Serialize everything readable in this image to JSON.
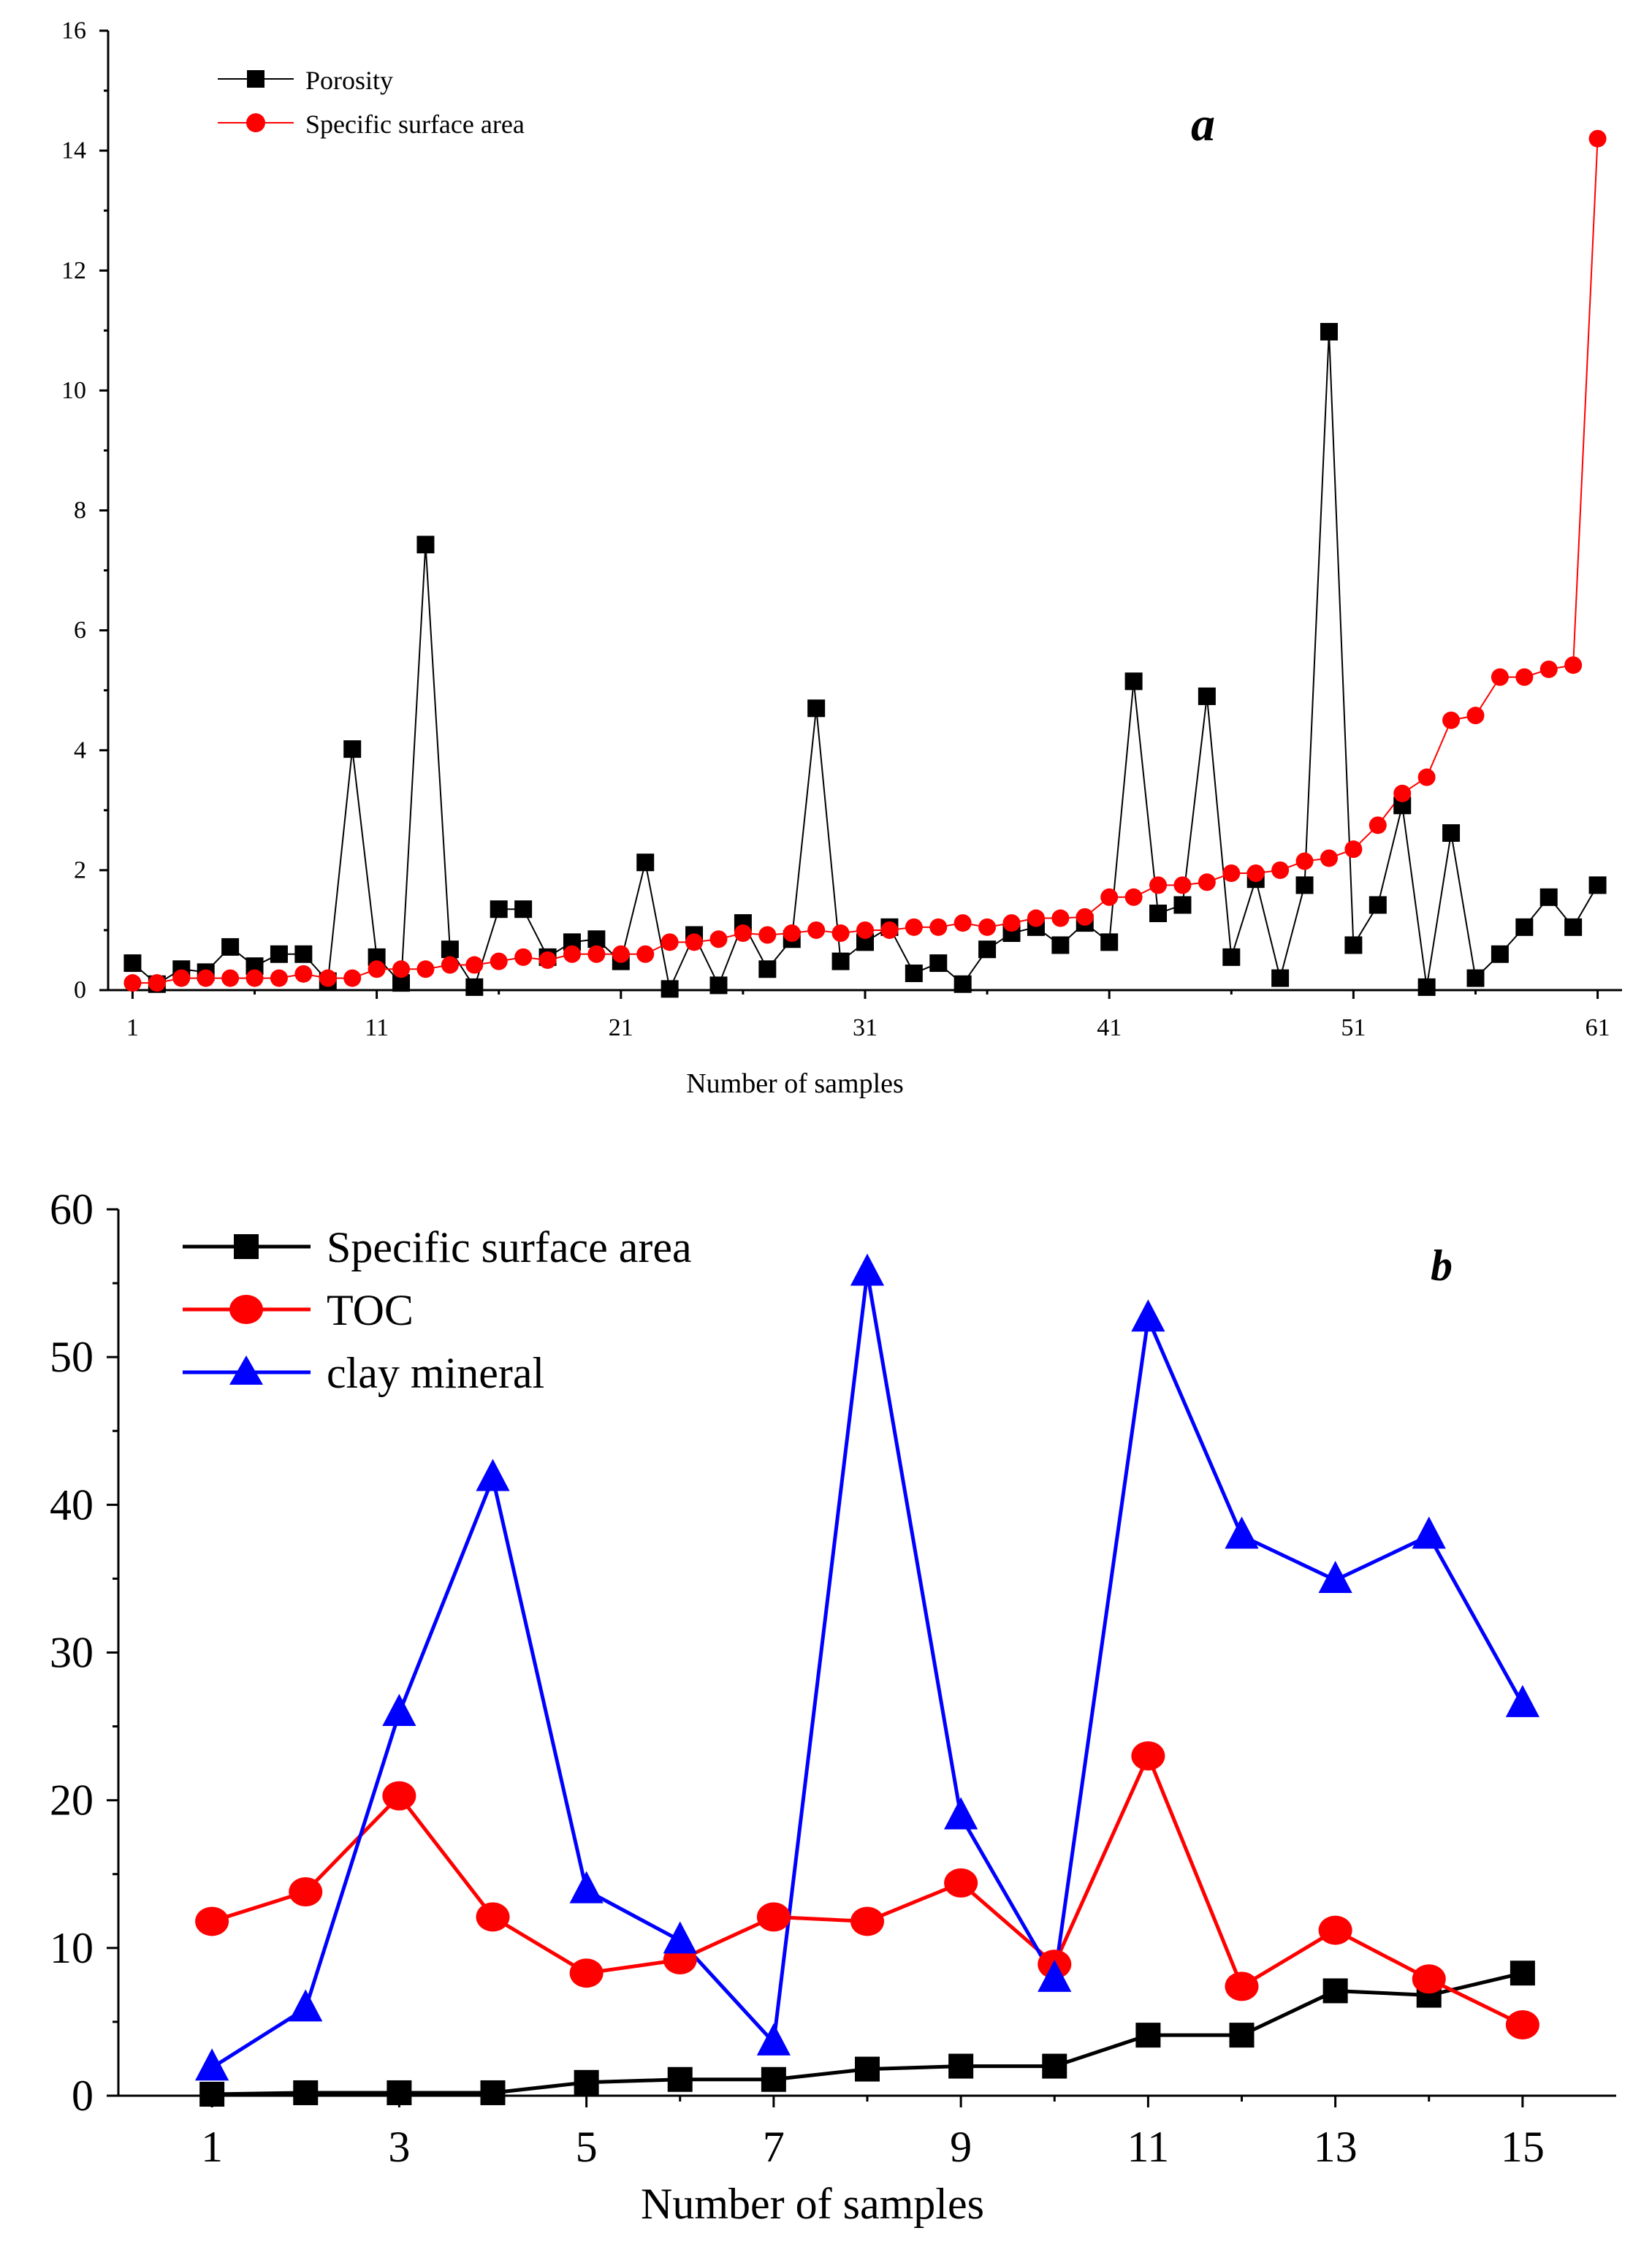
{
  "figure_labels": {
    "panel_a": "a",
    "panel_b": "b"
  },
  "colors": {
    "porosity": "#000000",
    "ssa_a": "#ff0000",
    "ssa_b": "#000000",
    "toc": "#ff0000",
    "clay": "#0000ff"
  },
  "chart_data": [
    {
      "type": "line",
      "panel": "a",
      "xlabel": "Number of samples",
      "ylabel": "",
      "xlim": [
        0,
        62
      ],
      "ylim": [
        0,
        16
      ],
      "xticks": [
        "1",
        "11",
        "21",
        "31",
        "41",
        "51",
        "61"
      ],
      "yticks": [
        "0",
        "2",
        "4",
        "6",
        "8",
        "10",
        "12",
        "14",
        "16"
      ],
      "legend": [
        "Porosity",
        "Specific surface area"
      ],
      "x": [
        1,
        2,
        3,
        4,
        5,
        6,
        7,
        8,
        9,
        10,
        11,
        12,
        13,
        14,
        15,
        16,
        17,
        18,
        19,
        20,
        21,
        22,
        23,
        24,
        25,
        26,
        27,
        28,
        29,
        30,
        31,
        32,
        33,
        34,
        35,
        36,
        37,
        38,
        39,
        40,
        41,
        42,
        43,
        44,
        45,
        46,
        47,
        48,
        49,
        50,
        51,
        52,
        53,
        54,
        55,
        56,
        57,
        58,
        59,
        60,
        61
      ],
      "series": [
        {
          "name": "Porosity",
          "marker": "square",
          "values": [
            0.45,
            0.1,
            0.35,
            0.3,
            0.72,
            0.4,
            0.6,
            0.6,
            0.15,
            4.02,
            0.55,
            0.12,
            7.43,
            0.68,
            0.05,
            1.35,
            1.35,
            0.55,
            0.8,
            0.85,
            0.48,
            2.13,
            0.02,
            0.92,
            0.08,
            1.12,
            0.35,
            0.85,
            4.7,
            0.48,
            0.8,
            1.05,
            0.28,
            0.45,
            0.1,
            0.68,
            0.95,
            1.05,
            0.75,
            1.12,
            0.8,
            5.15,
            1.28,
            1.42,
            4.9,
            0.55,
            1.85,
            0.2,
            1.75,
            10.98,
            0.75,
            1.42,
            3.08,
            0.05,
            2.62,
            0.2,
            0.6,
            1.05,
            1.55,
            1.05,
            1.75
          ]
        },
        {
          "name": "Specific surface area",
          "marker": "circle",
          "values": [
            0.12,
            0.12,
            0.2,
            0.2,
            0.2,
            0.2,
            0.2,
            0.27,
            0.2,
            0.2,
            0.35,
            0.35,
            0.35,
            0.42,
            0.42,
            0.48,
            0.55,
            0.5,
            0.6,
            0.6,
            0.6,
            0.6,
            0.8,
            0.8,
            0.85,
            0.95,
            0.92,
            0.95,
            1.0,
            0.95,
            1.0,
            1.0,
            1.05,
            1.05,
            1.12,
            1.05,
            1.12,
            1.2,
            1.2,
            1.22,
            1.55,
            1.55,
            1.75,
            1.75,
            1.8,
            1.95,
            1.95,
            2.0,
            2.15,
            2.2,
            2.35,
            2.75,
            3.28,
            3.55,
            4.5,
            4.58,
            5.22,
            5.22,
            5.35,
            5.42,
            14.2
          ]
        }
      ]
    },
    {
      "type": "line",
      "panel": "b",
      "xlabel": "Number of samples",
      "ylabel": "",
      "xlim": [
        0,
        16
      ],
      "ylim": [
        0,
        60
      ],
      "xticks": [
        "1",
        "3",
        "5",
        "7",
        "9",
        "11",
        "13",
        "15"
      ],
      "yticks": [
        "0",
        "10",
        "20",
        "30",
        "40",
        "50",
        "60"
      ],
      "legend": [
        "Specific surface area",
        "TOC",
        "clay mineral"
      ],
      "x": [
        1,
        2,
        3,
        4,
        5,
        6,
        7,
        8,
        9,
        10,
        11,
        12,
        13,
        14,
        15
      ],
      "series": [
        {
          "name": "Specific surface area",
          "marker": "square",
          "values": [
            0.1,
            0.2,
            0.2,
            0.2,
            0.9,
            1.1,
            1.1,
            1.8,
            2.0,
            2.0,
            4.1,
            4.1,
            7.1,
            6.8,
            8.3
          ]
        },
        {
          "name": "TOC",
          "marker": "circle",
          "values": [
            11.8,
            13.8,
            20.3,
            12.1,
            8.3,
            9.2,
            12.1,
            11.8,
            14.4,
            8.9,
            23.0,
            7.4,
            11.2,
            7.9,
            4.8
          ]
        },
        {
          "name": "clay mineral",
          "marker": "triangle",
          "values": [
            1.9,
            5.9,
            25.9,
            41.8,
            13.9,
            10.5,
            3.6,
            55.7,
            18.9,
            7.9,
            52.6,
            37.9,
            34.9,
            37.9,
            26.5
          ]
        }
      ]
    }
  ]
}
